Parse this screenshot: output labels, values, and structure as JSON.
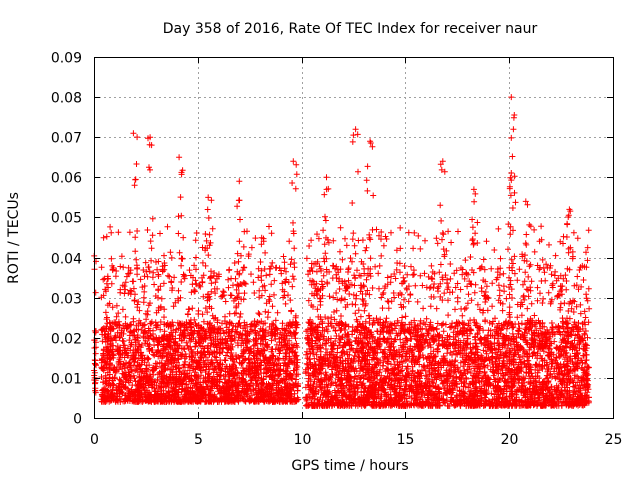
{
  "chart_data": {
    "type": "scatter",
    "title": "Day 358 of 2016, Rate Of TEC Index for receiver naur",
    "xlabel": "GPS time / hours",
    "ylabel": "ROTI / TECUs",
    "xlim": [
      0,
      25
    ],
    "ylim": [
      0,
      0.09
    ],
    "xticks": [
      0,
      5,
      10,
      15,
      20,
      25
    ],
    "xtick_labels": [
      "0",
      "5",
      "10",
      "15",
      "20",
      "25"
    ],
    "yticks": [
      0,
      0.01,
      0.02,
      0.03,
      0.04,
      0.05,
      0.06,
      0.07,
      0.08,
      0.09
    ],
    "ytick_labels": [
      "0",
      "0.01",
      "0.02",
      "0.03",
      "0.04",
      "0.05",
      "0.06",
      "0.07",
      "0.08",
      "0.09"
    ],
    "grid": true,
    "marker": "+",
    "color": "#ff0000",
    "series": [
      {
        "name": "ROTI",
        "segments": [
          {
            "x_start": 0.0,
            "x_end": 0.1,
            "typical_min": 0.006,
            "typical_max": 0.024
          },
          {
            "x_start": 0.35,
            "x_end": 9.85,
            "typical_min": 0.004,
            "typical_max": 0.03
          },
          {
            "x_start": 10.2,
            "x_end": 23.85,
            "typical_min": 0.003,
            "typical_max": 0.03
          }
        ],
        "peaks": [
          {
            "x": 1.9,
            "y": 0.071
          },
          {
            "x": 2.7,
            "y": 0.07
          },
          {
            "x": 4.1,
            "y": 0.065
          },
          {
            "x": 5.5,
            "y": 0.055
          },
          {
            "x": 7.0,
            "y": 0.059
          },
          {
            "x": 9.6,
            "y": 0.064
          },
          {
            "x": 11.2,
            "y": 0.06
          },
          {
            "x": 12.6,
            "y": 0.072
          },
          {
            "x": 13.3,
            "y": 0.069
          },
          {
            "x": 16.8,
            "y": 0.064
          },
          {
            "x": 18.3,
            "y": 0.057
          },
          {
            "x": 20.1,
            "y": 0.08
          },
          {
            "x": 20.2,
            "y": 0.072
          },
          {
            "x": 20.8,
            "y": 0.054
          },
          {
            "x": 22.9,
            "y": 0.052
          }
        ]
      }
    ]
  }
}
